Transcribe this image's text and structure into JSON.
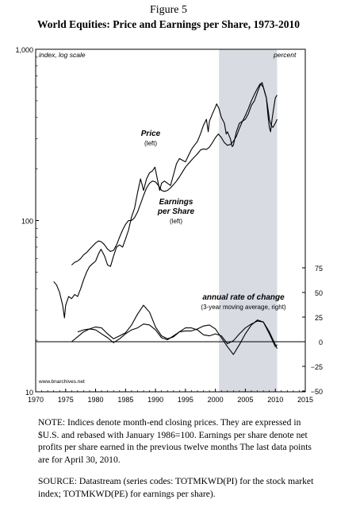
{
  "figure_label": "Figure 5",
  "figure_title": "World Equities: Price and Earnings per Share, 1973-2010",
  "note": "NOTE: Indices denote month-end closing prices. They are expressed in $U.S. and rebased with January 1986=100. Earnings per share denote net profits per share earned in the previous twelve months The last data points are for April 30, 2010.",
  "source": "SOURCE: Datastream (series codes: TOTMKWD(PI) for the stock market index; TOTMKWD(PE) for earnings per share).",
  "chart_data": {
    "type": "line",
    "left_axis": {
      "label": "index, log scale",
      "scale": "log",
      "ylim": [
        10,
        1000
      ],
      "ticks": [
        "10",
        "100",
        "1,000"
      ]
    },
    "right_axis": {
      "label": "percent",
      "ylim": [
        -50,
        75
      ],
      "ticks": [
        "75",
        "50",
        "25",
        "0",
        "−25",
        "−50"
      ]
    },
    "x_axis": {
      "xlim": [
        1970,
        2015
      ],
      "ticks": [
        "1970",
        "1975",
        "1980",
        "1985",
        "1990",
        "1995",
        "2000",
        "2005",
        "2010",
        "2015"
      ]
    },
    "shaded_period": [
      2000.6,
      2010.3
    ],
    "zero_line": 0,
    "annotations": {
      "price": [
        "Price",
        "(left)"
      ],
      "earnings": [
        "Earnings",
        "per Share",
        "(left)"
      ],
      "change": [
        "annual rate of change",
        "(3-year moving average, right)"
      ]
    },
    "credit": "www.bnarchives.net",
    "series": [
      {
        "name": "Price",
        "axis": "left",
        "color": "#000000",
        "x": [
          1973.0,
          1973.5,
          1974.0,
          1974.5,
          1974.8,
          1975.0,
          1975.5,
          1976.0,
          1976.5,
          1977.0,
          1977.5,
          1978.0,
          1978.5,
          1979.0,
          1979.5,
          1980.0,
          1980.5,
          1980.9,
          1981.5,
          1982.0,
          1982.5,
          1983.0,
          1983.5,
          1984.0,
          1984.5,
          1985.0,
          1985.5,
          1986.0,
          1986.5,
          1987.0,
          1987.5,
          1987.8,
          1988.0,
          1988.5,
          1989.0,
          1989.5,
          1989.9,
          1990.3,
          1990.7,
          1991.0,
          1991.5,
          1992.0,
          1992.5,
          1993.0,
          1993.5,
          1994.0,
          1994.5,
          1995.0,
          1995.5,
          1996.0,
          1996.5,
          1997.0,
          1997.5,
          1998.0,
          1998.5,
          1998.8,
          1999.0,
          1999.5,
          2000.0,
          2000.2,
          2000.6,
          2001.0,
          2001.5,
          2001.8,
          2002.0,
          2002.5,
          2002.8,
          2003.0,
          2003.5,
          2004.0,
          2004.5,
          2005.0,
          2005.5,
          2006.0,
          2006.5,
          2007.0,
          2007.5,
          2007.8,
          2008.0,
          2008.5,
          2008.8,
          2009.0,
          2009.2,
          2009.5,
          2009.8,
          2010.0,
          2010.3
        ],
        "values": [
          44,
          42,
          38,
          32,
          27,
          32,
          36,
          35,
          37,
          36,
          40,
          45,
          50,
          54,
          56,
          58,
          64,
          68,
          62,
          55,
          54,
          62,
          70,
          72,
          70,
          78,
          88,
          105,
          118,
          145,
          175,
          160,
          150,
          175,
          190,
          195,
          205,
          175,
          150,
          165,
          170,
          165,
          160,
          185,
          215,
          230,
          225,
          220,
          240,
          260,
          275,
          290,
          320,
          360,
          390,
          330,
          380,
          420,
          460,
          480,
          450,
          400,
          370,
          320,
          330,
          300,
          270,
          275,
          330,
          370,
          380,
          390,
          420,
          470,
          500,
          560,
          620,
          640,
          600,
          520,
          400,
          350,
          330,
          400,
          470,
          520,
          540
        ]
      },
      {
        "name": "Earnings per Share",
        "axis": "left",
        "color": "#000000",
        "x": [
          1976.0,
          1976.5,
          1977.0,
          1977.5,
          1978.0,
          1978.5,
          1979.0,
          1979.5,
          1980.0,
          1980.5,
          1981.0,
          1981.5,
          1982.0,
          1982.5,
          1983.0,
          1983.5,
          1984.0,
          1984.5,
          1985.0,
          1985.5,
          1986.0,
          1986.5,
          1987.0,
          1987.5,
          1988.0,
          1988.5,
          1989.0,
          1989.5,
          1990.0,
          1990.5,
          1991.0,
          1991.5,
          1992.0,
          1992.5,
          1993.0,
          1993.5,
          1994.0,
          1994.5,
          1995.0,
          1995.5,
          1996.0,
          1996.5,
          1997.0,
          1997.5,
          1998.0,
          1998.5,
          1999.0,
          1999.5,
          2000.0,
          2000.5,
          2001.0,
          2001.5,
          2002.0,
          2002.5,
          2003.0,
          2003.5,
          2004.0,
          2004.5,
          2005.0,
          2005.5,
          2006.0,
          2006.5,
          2007.0,
          2007.5,
          2008.0,
          2008.5,
          2008.8,
          2009.0,
          2009.3,
          2009.6,
          2010.0,
          2010.3
        ],
        "values": [
          55,
          57,
          58,
          60,
          63,
          65,
          68,
          71,
          74,
          76,
          75,
          72,
          68,
          66,
          67,
          72,
          80,
          88,
          95,
          100,
          100,
          104,
          112,
          125,
          140,
          155,
          165,
          170,
          168,
          160,
          150,
          148,
          150,
          155,
          162,
          170,
          180,
          192,
          205,
          215,
          225,
          235,
          245,
          258,
          262,
          260,
          268,
          285,
          305,
          320,
          305,
          285,
          275,
          278,
          290,
          310,
          345,
          380,
          410,
          450,
          500,
          545,
          590,
          630,
          600,
          520,
          440,
          390,
          360,
          350,
          370,
          390
        ]
      },
      {
        "name": "Price annual rate of change",
        "axis": "right",
        "color": "#000000",
        "x": [
          1976.0,
          1977.0,
          1978.0,
          1979.0,
          1980.0,
          1981.0,
          1982.0,
          1983.0,
          1984.0,
          1985.0,
          1986.0,
          1987.0,
          1988.0,
          1989.0,
          1990.0,
          1991.0,
          1992.0,
          1993.0,
          1994.0,
          1995.0,
          1996.0,
          1997.0,
          1998.0,
          1999.0,
          2000.0,
          2001.0,
          2002.0,
          2003.0,
          2004.0,
          2005.0,
          2006.0,
          2007.0,
          2008.0,
          2009.0,
          2010.0,
          2010.3
        ],
        "values": [
          0,
          5,
          10,
          13,
          15,
          14,
          8,
          3,
          6,
          9,
          17,
          28,
          37,
          30,
          15,
          6,
          3,
          5,
          10,
          11,
          11,
          13,
          16,
          17,
          13,
          4,
          -5,
          -13,
          -3,
          8,
          17,
          22,
          20,
          8,
          -5,
          -3
        ]
      },
      {
        "name": "Earnings per Share annual rate of change",
        "axis": "right",
        "color": "#000000",
        "x": [
          1977.0,
          1978.0,
          1979.0,
          1980.0,
          1981.0,
          1982.0,
          1983.0,
          1984.0,
          1985.0,
          1986.0,
          1987.0,
          1988.0,
          1989.0,
          1990.0,
          1991.0,
          1992.0,
          1993.0,
          1994.0,
          1995.0,
          1996.0,
          1997.0,
          1998.0,
          1999.0,
          2000.0,
          2001.0,
          2002.0,
          2003.0,
          2004.0,
          2005.0,
          2006.0,
          2007.0,
          2008.0,
          2009.0,
          2010.0,
          2010.3
        ],
        "values": [
          10,
          12,
          13,
          12,
          8,
          4,
          -1,
          3,
          8,
          12,
          14,
          18,
          17,
          12,
          4,
          2,
          6,
          10,
          14,
          14,
          12,
          7,
          6,
          8,
          6,
          -2,
          1,
          8,
          14,
          18,
          21,
          20,
          10,
          -3,
          -7
        ]
      }
    ]
  }
}
